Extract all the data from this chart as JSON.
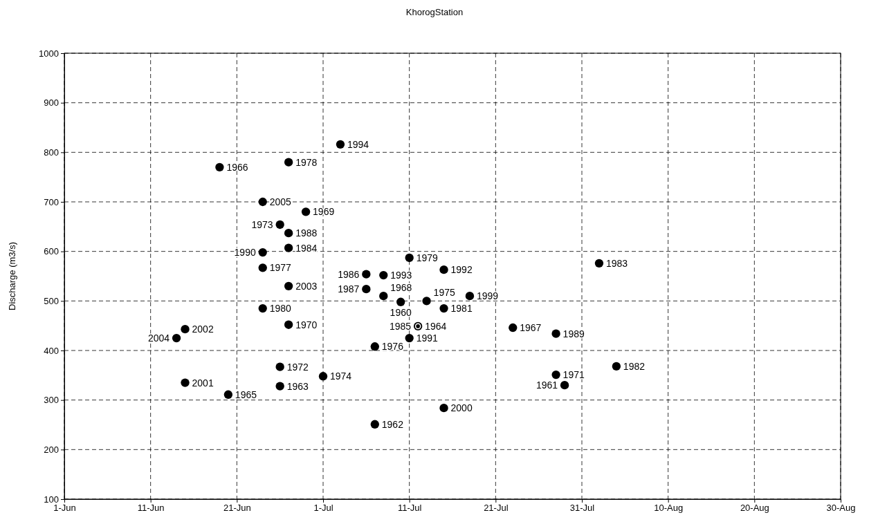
{
  "chart_data": {
    "type": "scatter",
    "title": "KhorogStation",
    "ylabel": "Discharge (m3/s)",
    "series": [
      {
        "name": "1966",
        "color": "#000000",
        "x": [
          "--06-19"
        ],
        "values": [
          770
        ]
      },
      {
        "name": "1978",
        "color": "#000000",
        "x": [
          "--06-27"
        ],
        "values": [
          780
        ]
      },
      {
        "name": "1994",
        "color": "#000000",
        "x": [
          "--07-03"
        ],
        "values": [
          816
        ]
      },
      {
        "name": "2005",
        "color": "#000000",
        "x": [
          "--06-24"
        ],
        "values": [
          700
        ]
      },
      {
        "name": "1969",
        "color": "#000000",
        "x": [
          "--06-29"
        ],
        "values": [
          680
        ]
      },
      {
        "name": "1973",
        "color": "#000000",
        "x": [
          "--06-26"
        ],
        "values": [
          654
        ]
      },
      {
        "name": "1988",
        "color": "#000000",
        "x": [
          "--06-27"
        ],
        "values": [
          637
        ]
      },
      {
        "name": "1984",
        "color": "#000000",
        "x": [
          "--06-27"
        ],
        "values": [
          607
        ]
      },
      {
        "name": "1990",
        "color": "#000000",
        "x": [
          "--06-24"
        ],
        "values": [
          598
        ]
      },
      {
        "name": "1977",
        "color": "#000000",
        "x": [
          "--06-24"
        ],
        "values": [
          567
        ]
      },
      {
        "name": "2003",
        "color": "#000000",
        "x": [
          "--06-27"
        ],
        "values": [
          530
        ]
      },
      {
        "name": "1980",
        "color": "#000000",
        "x": [
          "--06-24"
        ],
        "values": [
          485
        ]
      },
      {
        "name": "1970",
        "color": "#000000",
        "x": [
          "--06-27"
        ],
        "values": [
          452
        ]
      },
      {
        "name": "2002",
        "color": "#000000",
        "x": [
          "--06-15"
        ],
        "values": [
          443
        ]
      },
      {
        "name": "2004",
        "color": "#000000",
        "x": [
          "--06-14"
        ],
        "values": [
          425
        ]
      },
      {
        "name": "2001",
        "color": "#000000",
        "x": [
          "--06-15"
        ],
        "values": [
          335
        ]
      },
      {
        "name": "1965",
        "color": "#000000",
        "x": [
          "--06-20"
        ],
        "values": [
          311
        ]
      },
      {
        "name": "1972",
        "color": "#000000",
        "x": [
          "--06-26"
        ],
        "values": [
          367
        ]
      },
      {
        "name": "1963",
        "color": "#000000",
        "x": [
          "--06-26"
        ],
        "values": [
          328
        ]
      },
      {
        "name": "1974",
        "color": "#000000",
        "x": [
          "--07-01"
        ],
        "values": [
          348
        ]
      },
      {
        "name": "1962",
        "color": "#000000",
        "x": [
          "--07-07"
        ],
        "values": [
          251
        ]
      },
      {
        "name": "1976",
        "color": "#000000",
        "x": [
          "--07-07"
        ],
        "values": [
          408
        ]
      },
      {
        "name": "1991",
        "color": "#000000",
        "x": [
          "--07-11"
        ],
        "values": [
          425
        ]
      },
      {
        "name": "1964",
        "color": "#000000",
        "x": [
          "--07-12"
        ],
        "values": [
          449
        ]
      },
      {
        "name": "1985",
        "color": "#000000",
        "x": [
          "--07-12"
        ],
        "values": [
          449
        ]
      },
      {
        "name": "1979",
        "color": "#000000",
        "x": [
          "--07-11"
        ],
        "values": [
          587
        ]
      },
      {
        "name": "1992",
        "color": "#000000",
        "x": [
          "--07-15"
        ],
        "values": [
          563
        ]
      },
      {
        "name": "1986",
        "color": "#000000",
        "x": [
          "--07-06"
        ],
        "values": [
          554
        ]
      },
      {
        "name": "1993",
        "color": "#000000",
        "x": [
          "--07-08"
        ],
        "values": [
          552
        ]
      },
      {
        "name": "1987",
        "color": "#000000",
        "x": [
          "--07-06"
        ],
        "values": [
          524
        ]
      },
      {
        "name": "1968",
        "color": "#000000",
        "x": [
          "--07-08"
        ],
        "values": [
          510
        ]
      },
      {
        "name": "1960",
        "color": "#000000",
        "x": [
          "--07-10"
        ],
        "values": [
          498
        ]
      },
      {
        "name": "1975",
        "color": "#000000",
        "x": [
          "--07-13"
        ],
        "values": [
          500
        ]
      },
      {
        "name": "1981",
        "color": "#000000",
        "x": [
          "--07-15"
        ],
        "values": [
          485
        ]
      },
      {
        "name": "1999",
        "color": "#000000",
        "x": [
          "--07-18"
        ],
        "values": [
          510
        ]
      },
      {
        "name": "1967",
        "color": "#000000",
        "x": [
          "--07-23"
        ],
        "values": [
          446
        ]
      },
      {
        "name": "1989",
        "color": "#000000",
        "x": [
          "--07-28"
        ],
        "values": [
          434
        ]
      },
      {
        "name": "1983",
        "color": "#000000",
        "x": [
          "--08-02"
        ],
        "values": [
          576
        ]
      },
      {
        "name": "1982",
        "color": "#000000",
        "x": [
          "--08-04"
        ],
        "values": [
          368
        ]
      },
      {
        "name": "1971",
        "color": "#000000",
        "x": [
          "--07-28"
        ],
        "values": [
          351
        ]
      },
      {
        "name": "1961",
        "color": "#000000",
        "x": [
          "--07-29"
        ],
        "values": [
          330
        ]
      },
      {
        "name": "2000",
        "color": "#000000",
        "x": [
          "--07-15"
        ],
        "values": [
          284
        ]
      }
    ],
    "marker": "circle",
    "xlim": [
      "--06-01",
      "--08-30"
    ],
    "xticks": [
      {
        "value": "--06-01",
        "label": "1-Jun"
      },
      {
        "value": "--06-11",
        "label": "11-Jun"
      },
      {
        "value": "--06-21",
        "label": "21-Jun"
      },
      {
        "value": "--07-01",
        "label": "1-Jul"
      },
      {
        "value": "--07-11",
        "label": "11-Jul"
      },
      {
        "value": "--07-21",
        "label": "21-Jul"
      },
      {
        "value": "--07-31",
        "label": "31-Jul"
      },
      {
        "value": "--08-10",
        "label": "10-Aug"
      },
      {
        "value": "--08-20",
        "label": "20-Aug"
      },
      {
        "value": "--08-30",
        "label": "30-Aug"
      }
    ],
    "ylim": [
      100,
      1000
    ],
    "yticks": [
      100,
      200,
      300,
      400,
      500,
      600,
      700,
      800,
      900,
      1000
    ],
    "grid": true,
    "line_style": "dashed"
  }
}
